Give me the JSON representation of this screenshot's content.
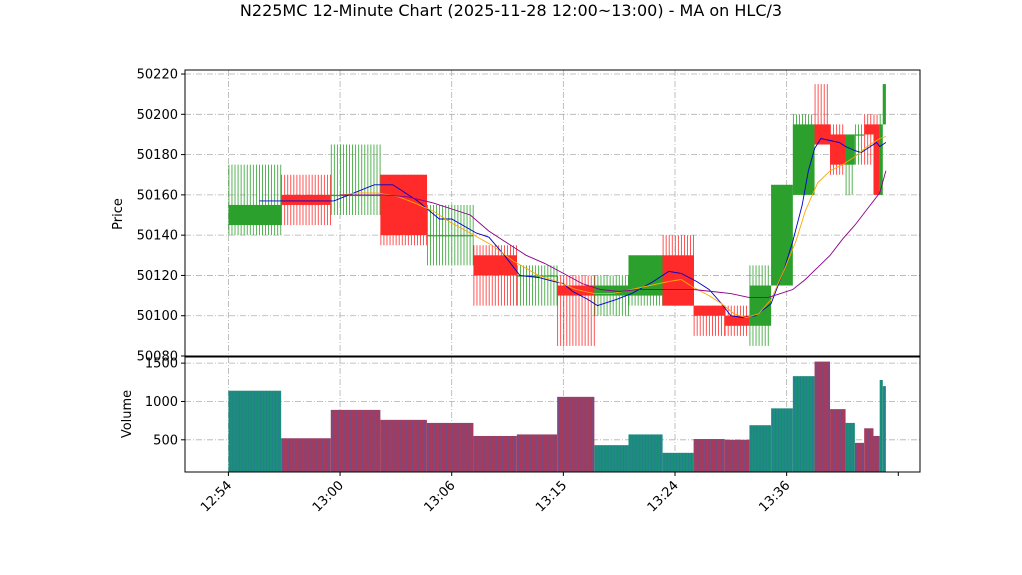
{
  "chart_data": {
    "type": "candlestick",
    "title": "N225MC 12-Minute Chart (2025-11-28 12:00~13:00) - MA on HLC/3",
    "price_panel": {
      "ylabel": "Price",
      "ylim": [
        50080,
        50222
      ],
      "yticks": [
        50080,
        50100,
        50120,
        50140,
        50160,
        50180,
        50200,
        50220
      ]
    },
    "volume_panel": {
      "ylabel": "Volume",
      "ylim": [
        80,
        1580
      ],
      "yticks": [
        500,
        1000,
        1500
      ]
    },
    "x_axis": {
      "xlim": [
        -14,
        223
      ],
      "ticks": [
        {
          "x": 0,
          "label": "12:54"
        },
        {
          "x": 36,
          "label": "13:00"
        },
        {
          "x": 72,
          "label": "13:06"
        },
        {
          "x": 108,
          "label": "13:15"
        },
        {
          "x": 144,
          "label": "13:24"
        },
        {
          "x": 180,
          "label": "13:36"
        },
        {
          "x": 216,
          "label": ""
        }
      ]
    },
    "grid": true,
    "colors": {
      "up": "#2ca02c",
      "down": "#ff2a2a",
      "volume_up": "#1b8f7a",
      "volume_down": "#a63a5a",
      "ma_fast": "#0000cc",
      "ma_mid": "#ffa500",
      "ma_slow": "#8b008b"
    },
    "candles": [
      {
        "start": 0,
        "end": 17,
        "open": 50145,
        "high": 50175,
        "low": 50140,
        "close": 50155
      },
      {
        "start": 17,
        "end": 33,
        "open": 50160,
        "high": 50170,
        "low": 50145,
        "close": 50155
      },
      {
        "start": 33,
        "end": 49,
        "open": 50160,
        "high": 50185,
        "low": 50150,
        "close": 50160
      },
      {
        "start": 49,
        "end": 64,
        "open": 50170,
        "high": 50170,
        "low": 50135,
        "close": 50140
      },
      {
        "start": 64,
        "end": 79,
        "open": 50140,
        "high": 50155,
        "low": 50125,
        "close": 50140
      },
      {
        "start": 79,
        "end": 93,
        "open": 50130,
        "high": 50135,
        "low": 50105,
        "close": 50120
      },
      {
        "start": 93,
        "end": 106,
        "open": 50120,
        "high": 50125,
        "low": 50105,
        "close": 50120
      },
      {
        "start": 106,
        "end": 118,
        "open": 50115,
        "high": 50120,
        "low": 50085,
        "close": 50110
      },
      {
        "start": 118,
        "end": 129,
        "open": 50110,
        "high": 50120,
        "low": 50100,
        "close": 50115
      },
      {
        "start": 129,
        "end": 140,
        "open": 50110,
        "high": 50130,
        "low": 50105,
        "close": 50130
      },
      {
        "start": 140,
        "end": 150,
        "open": 50130,
        "high": 50140,
        "low": 50105,
        "close": 50105
      },
      {
        "start": 150,
        "end": 160,
        "open": 50105,
        "high": 50105,
        "low": 50090,
        "close": 50100
      },
      {
        "start": 160,
        "end": 168,
        "open": 50100,
        "high": 50105,
        "low": 50090,
        "close": 50095
      },
      {
        "start": 168,
        "end": 175,
        "open": 50095,
        "high": 50125,
        "low": 50085,
        "close": 50115
      },
      {
        "start": 175,
        "end": 182,
        "open": 50115,
        "high": 50165,
        "low": 50115,
        "close": 50165
      },
      {
        "start": 182,
        "end": 189,
        "open": 50160,
        "high": 50200,
        "low": 50160,
        "close": 50195
      },
      {
        "start": 189,
        "end": 194,
        "open": 50195,
        "high": 50215,
        "low": 50185,
        "close": 50185
      },
      {
        "start": 194,
        "end": 199,
        "open": 50190,
        "high": 50195,
        "low": 50170,
        "close": 50175
      },
      {
        "start": 199,
        "end": 202,
        "open": 50175,
        "high": 50190,
        "low": 50160,
        "close": 50190
      },
      {
        "start": 202,
        "end": 205,
        "open": 50190,
        "high": 50195,
        "low": 50175,
        "close": 50190
      },
      {
        "start": 205,
        "end": 208,
        "open": 50195,
        "high": 50200,
        "low": 50175,
        "close": 50190
      },
      {
        "start": 208,
        "end": 210,
        "open": 50195,
        "high": 50200,
        "low": 50160,
        "close": 50160
      },
      {
        "start": 210,
        "end": 211,
        "open": 50160,
        "high": 50200,
        "low": 50160,
        "close": 50195
      },
      {
        "start": 211,
        "end": 212,
        "open": 50195,
        "high": 50215,
        "low": 50195,
        "close": 50215
      }
    ],
    "volumes": [
      {
        "start": 0,
        "end": 17,
        "value": 1140,
        "up": true
      },
      {
        "start": 17,
        "end": 33,
        "value": 520,
        "up": false
      },
      {
        "start": 33,
        "end": 49,
        "value": 890,
        "up": false
      },
      {
        "start": 49,
        "end": 64,
        "value": 760,
        "up": false
      },
      {
        "start": 64,
        "end": 79,
        "value": 720,
        "up": false
      },
      {
        "start": 79,
        "end": 93,
        "value": 550,
        "up": false
      },
      {
        "start": 93,
        "end": 106,
        "value": 570,
        "up": false
      },
      {
        "start": 106,
        "end": 118,
        "value": 1060,
        "up": false
      },
      {
        "start": 118,
        "end": 129,
        "value": 430,
        "up": true
      },
      {
        "start": 129,
        "end": 140,
        "value": 570,
        "up": true
      },
      {
        "start": 140,
        "end": 150,
        "value": 330,
        "up": true
      },
      {
        "start": 150,
        "end": 160,
        "value": 510,
        "up": false
      },
      {
        "start": 160,
        "end": 168,
        "value": 500,
        "up": false
      },
      {
        "start": 168,
        "end": 175,
        "value": 690,
        "up": true
      },
      {
        "start": 175,
        "end": 182,
        "value": 910,
        "up": true
      },
      {
        "start": 182,
        "end": 189,
        "value": 1330,
        "up": true
      },
      {
        "start": 189,
        "end": 194,
        "value": 1520,
        "up": false
      },
      {
        "start": 194,
        "end": 199,
        "value": 900,
        "up": false
      },
      {
        "start": 199,
        "end": 202,
        "value": 720,
        "up": true
      },
      {
        "start": 202,
        "end": 205,
        "value": 460,
        "up": false
      },
      {
        "start": 205,
        "end": 208,
        "value": 650,
        "up": false
      },
      {
        "start": 208,
        "end": 210,
        "value": 550,
        "up": false
      },
      {
        "start": 210,
        "end": 211,
        "value": 1280,
        "up": true
      },
      {
        "start": 211,
        "end": 212,
        "value": 1200,
        "up": true
      }
    ],
    "ma_series": [
      {
        "key": "ma_fast",
        "points": [
          [
            10,
            50157
          ],
          [
            34,
            50157
          ],
          [
            47,
            50165
          ],
          [
            53,
            50165
          ],
          [
            61,
            50157
          ],
          [
            68,
            50148
          ],
          [
            72,
            50148
          ],
          [
            80,
            50141
          ],
          [
            84,
            50139
          ],
          [
            89,
            50130
          ],
          [
            94,
            50120
          ],
          [
            100,
            50119
          ],
          [
            105,
            50117
          ],
          [
            108,
            50116
          ],
          [
            111,
            50112
          ],
          [
            116,
            50108
          ],
          [
            119,
            50105
          ],
          [
            125,
            50108
          ],
          [
            130,
            50111
          ],
          [
            137,
            50117
          ],
          [
            142,
            50122
          ],
          [
            146,
            50121
          ],
          [
            151,
            50117
          ],
          [
            155,
            50113
          ],
          [
            159,
            50106
          ],
          [
            162,
            50100
          ],
          [
            166,
            50099
          ],
          [
            170,
            50100
          ],
          [
            175,
            50106
          ],
          [
            179,
            50122
          ],
          [
            182,
            50137
          ],
          [
            185,
            50155
          ],
          [
            187,
            50172
          ],
          [
            189,
            50183
          ],
          [
            191,
            50188
          ],
          [
            194,
            50187
          ],
          [
            197,
            50186
          ],
          [
            199,
            50184
          ],
          [
            202,
            50182
          ],
          [
            204,
            50181
          ],
          [
            207,
            50184
          ],
          [
            209,
            50186
          ],
          [
            210,
            50184
          ],
          [
            212,
            50186
          ]
        ]
      },
      {
        "key": "ma_mid",
        "points": [
          [
            36,
            50160
          ],
          [
            42,
            50161
          ],
          [
            48,
            50161
          ],
          [
            55,
            50159
          ],
          [
            60,
            50156
          ],
          [
            66,
            50152
          ],
          [
            72,
            50146
          ],
          [
            78,
            50141
          ],
          [
            85,
            50135
          ],
          [
            92,
            50127
          ],
          [
            100,
            50120
          ],
          [
            106,
            50117
          ],
          [
            112,
            50113
          ],
          [
            118,
            50111
          ],
          [
            124,
            50111
          ],
          [
            130,
            50113
          ],
          [
            136,
            50115
          ],
          [
            142,
            50117
          ],
          [
            146,
            50118
          ],
          [
            150,
            50114
          ],
          [
            155,
            50110
          ],
          [
            159,
            50106
          ],
          [
            163,
            50101
          ],
          [
            167,
            50099
          ],
          [
            171,
            50101
          ],
          [
            175,
            50108
          ],
          [
            179,
            50122
          ],
          [
            183,
            50137
          ],
          [
            186,
            50152
          ],
          [
            190,
            50166
          ],
          [
            194,
            50172
          ],
          [
            198,
            50175
          ],
          [
            202,
            50179
          ],
          [
            206,
            50184
          ],
          [
            210,
            50188
          ],
          [
            212,
            50189
          ]
        ]
      },
      {
        "key": "ma_slow",
        "points": [
          [
            36,
            50160
          ],
          [
            42,
            50160
          ],
          [
            50,
            50160
          ],
          [
            58,
            50159
          ],
          [
            66,
            50156
          ],
          [
            74,
            50152
          ],
          [
            78,
            50150
          ],
          [
            84,
            50142
          ],
          [
            90,
            50136
          ],
          [
            96,
            50130
          ],
          [
            102,
            50126
          ],
          [
            108,
            50121
          ],
          [
            114,
            50116
          ],
          [
            120,
            50113
          ],
          [
            126,
            50112
          ],
          [
            132,
            50113
          ],
          [
            138,
            50113
          ],
          [
            144,
            50113
          ],
          [
            150,
            50113
          ],
          [
            156,
            50112
          ],
          [
            162,
            50111
          ],
          [
            168,
            50109
          ],
          [
            174,
            50109
          ],
          [
            178,
            50111
          ],
          [
            182,
            50113
          ],
          [
            186,
            50118
          ],
          [
            190,
            50124
          ],
          [
            194,
            50130
          ],
          [
            198,
            50138
          ],
          [
            202,
            50145
          ],
          [
            206,
            50153
          ],
          [
            210,
            50161
          ],
          [
            212,
            50172
          ]
        ]
      }
    ]
  }
}
